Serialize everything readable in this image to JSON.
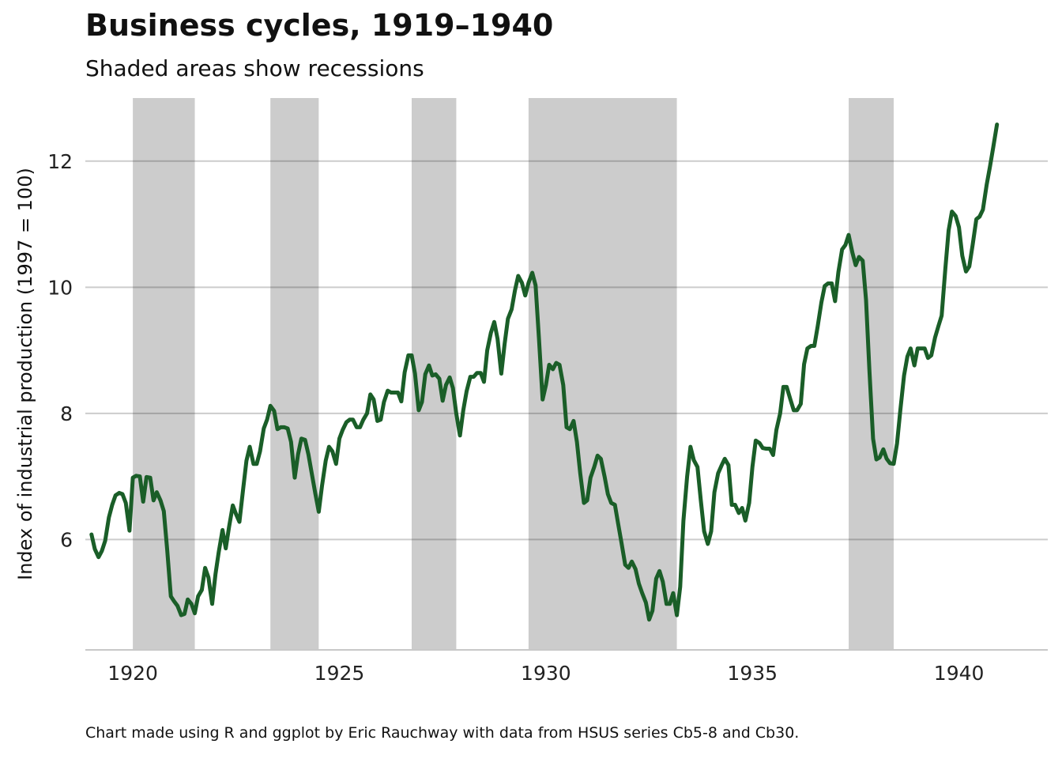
{
  "chart_data": {
    "type": "line",
    "title": "Business cycles, 1919–1940",
    "subtitle": "Shaded areas show recessions",
    "caption": "Chart made using R and ggplot by Eric Rauchway with data from HSUS series Cb5-8 and Cb30.",
    "xlabel": "",
    "ylabel": "Index of industrial production (1997 = 100)",
    "xlim": [
      1918.85,
      1942.15
    ],
    "ylim": [
      4.25,
      13.0
    ],
    "x_ticks": [
      1920,
      1925,
      1930,
      1935,
      1940
    ],
    "y_ticks": [
      6,
      8,
      10,
      12
    ],
    "grid": "horizontal",
    "legend": "none",
    "colors": {
      "line": "#1a5e28",
      "recession": "#cccccc",
      "grid": "#c8c8c8"
    },
    "recessions": [
      {
        "start": 1920.0,
        "end": 1921.5
      },
      {
        "start": 1923.33,
        "end": 1924.5
      },
      {
        "start": 1926.75,
        "end": 1927.83
      },
      {
        "start": 1929.58,
        "end": 1933.17
      },
      {
        "start": 1937.33,
        "end": 1938.42
      }
    ],
    "series": [
      {
        "x": [
          1919.0,
          1919.08,
          1919.17,
          1919.25,
          1919.33,
          1919.42,
          1919.5,
          1919.58,
          1919.67,
          1919.75,
          1919.83,
          1919.92,
          1920.0,
          1920.08,
          1920.17,
          1920.25,
          1920.33,
          1920.42,
          1920.5,
          1920.58,
          1920.67,
          1920.75,
          1920.83,
          1920.92,
          1921.0,
          1921.08,
          1921.17,
          1921.25,
          1921.33,
          1921.42,
          1921.5,
          1921.58,
          1921.67,
          1921.75,
          1921.83,
          1921.92,
          1922.0,
          1922.08,
          1922.17,
          1922.25,
          1922.33,
          1922.42,
          1922.5,
          1922.58,
          1922.67,
          1922.75,
          1922.83,
          1922.92,
          1923.0,
          1923.08,
          1923.17,
          1923.25,
          1923.33,
          1923.42,
          1923.5,
          1923.58,
          1923.67,
          1923.75,
          1923.83,
          1923.92,
          1924.0,
          1924.08,
          1924.17,
          1924.25,
          1924.33,
          1924.42,
          1924.5,
          1924.58,
          1924.67,
          1924.75,
          1924.83,
          1924.92,
          1925.0,
          1925.08,
          1925.17,
          1925.25,
          1925.33,
          1925.42,
          1925.5,
          1925.58,
          1925.67,
          1925.75,
          1925.83,
          1925.92,
          1926.0,
          1926.08,
          1926.17,
          1926.25,
          1926.33,
          1926.42,
          1926.5,
          1926.58,
          1926.67,
          1926.75,
          1926.83,
          1926.92,
          1927.0,
          1927.08,
          1927.17,
          1927.25,
          1927.33,
          1927.42,
          1927.5,
          1927.58,
          1927.67,
          1927.75,
          1927.83,
          1927.92,
          1928.0,
          1928.08,
          1928.17,
          1928.25,
          1928.33,
          1928.42,
          1928.5,
          1928.58,
          1928.67,
          1928.75,
          1928.83,
          1928.92,
          1929.0,
          1929.08,
          1929.17,
          1929.25,
          1929.33,
          1929.42,
          1929.5,
          1929.58,
          1929.67,
          1929.75,
          1929.83,
          1929.92,
          1930.0,
          1930.08,
          1930.17,
          1930.25,
          1930.33,
          1930.42,
          1930.5,
          1930.58,
          1930.67,
          1930.75,
          1930.83,
          1930.92,
          1931.0,
          1931.08,
          1931.17,
          1931.25,
          1931.33,
          1931.42,
          1931.5,
          1931.58,
          1931.67,
          1931.75,
          1931.83,
          1931.92,
          1932.0,
          1932.08,
          1932.17,
          1932.25,
          1932.33,
          1932.42,
          1932.5,
          1932.58,
          1932.67,
          1932.75,
          1932.83,
          1932.92,
          1933.0,
          1933.08,
          1933.17,
          1933.25,
          1933.33,
          1933.42,
          1933.5,
          1933.58,
          1933.67,
          1933.75,
          1933.83,
          1933.92,
          1934.0,
          1934.08,
          1934.17,
          1934.25,
          1934.33,
          1934.42,
          1934.5,
          1934.58,
          1934.67,
          1934.75,
          1934.83,
          1934.92,
          1935.0,
          1935.08,
          1935.17,
          1935.25,
          1935.33,
          1935.42,
          1935.5,
          1935.58,
          1935.67,
          1935.75,
          1935.83,
          1935.92,
          1936.0,
          1936.08,
          1936.17,
          1936.25,
          1936.33,
          1936.42,
          1936.5,
          1936.58,
          1936.67,
          1936.75,
          1936.83,
          1936.92,
          1937.0,
          1937.08,
          1937.17,
          1937.25,
          1937.33,
          1937.42,
          1937.5,
          1937.58,
          1937.67,
          1937.75,
          1937.83,
          1937.92,
          1938.0,
          1938.08,
          1938.17,
          1938.25,
          1938.33,
          1938.42,
          1938.5,
          1938.58,
          1938.67,
          1938.75,
          1938.83,
          1938.92,
          1939.0,
          1939.08,
          1939.17,
          1939.25,
          1939.33,
          1939.42,
          1939.5,
          1939.58,
          1939.67,
          1939.75,
          1939.83,
          1939.92,
          1940.0,
          1940.08,
          1940.17,
          1940.25,
          1940.33,
          1940.42,
          1940.5,
          1940.58,
          1940.67,
          1940.75,
          1940.83,
          1940.92
        ],
        "y": [
          6.08,
          5.85,
          5.72,
          5.82,
          5.98,
          6.35,
          6.55,
          6.7,
          6.74,
          6.72,
          6.58,
          6.14,
          6.98,
          7.01,
          7.0,
          6.6,
          6.99,
          6.98,
          6.62,
          6.75,
          6.62,
          6.45,
          5.85,
          5.1,
          5.02,
          4.95,
          4.8,
          4.82,
          5.05,
          4.98,
          4.83,
          5.1,
          5.2,
          5.55,
          5.4,
          4.98,
          5.45,
          5.8,
          6.15,
          5.86,
          6.2,
          6.54,
          6.4,
          6.28,
          6.8,
          7.25,
          7.47,
          7.2,
          7.2,
          7.4,
          7.76,
          7.9,
          8.12,
          8.04,
          7.75,
          7.78,
          7.78,
          7.76,
          7.55,
          6.98,
          7.35,
          7.6,
          7.58,
          7.35,
          7.05,
          6.72,
          6.44,
          6.85,
          7.25,
          7.47,
          7.4,
          7.2,
          7.6,
          7.74,
          7.86,
          7.9,
          7.9,
          7.78,
          7.78,
          7.9,
          8.0,
          8.3,
          8.22,
          7.88,
          7.9,
          8.18,
          8.36,
          8.33,
          8.33,
          8.33,
          8.19,
          8.65,
          8.92,
          8.92,
          8.63,
          8.05,
          8.18,
          8.62,
          8.76,
          8.6,
          8.62,
          8.55,
          8.2,
          8.45,
          8.57,
          8.4,
          8.0,
          7.65,
          8.05,
          8.35,
          8.58,
          8.58,
          8.64,
          8.64,
          8.5,
          9.0,
          9.28,
          9.45,
          9.18,
          8.63,
          9.1,
          9.5,
          9.65,
          9.95,
          10.18,
          10.07,
          9.87,
          10.07,
          10.23,
          10.03,
          9.2,
          8.22,
          8.45,
          8.77,
          8.7,
          8.8,
          8.77,
          8.45,
          7.78,
          7.75,
          7.88,
          7.55,
          7.05,
          6.58,
          6.62,
          6.98,
          7.15,
          7.33,
          7.28,
          7.0,
          6.72,
          6.58,
          6.55,
          6.25,
          5.95,
          5.6,
          5.55,
          5.65,
          5.53,
          5.3,
          5.15,
          5.0,
          4.73,
          4.87,
          5.38,
          5.5,
          5.33,
          4.98,
          4.98,
          5.15,
          4.8,
          5.25,
          6.3,
          7.0,
          7.47,
          7.26,
          7.15,
          6.62,
          6.13,
          5.93,
          6.13,
          6.75,
          7.05,
          7.17,
          7.28,
          7.18,
          6.55,
          6.55,
          6.42,
          6.5,
          6.3,
          6.58,
          7.15,
          7.57,
          7.53,
          7.45,
          7.44,
          7.44,
          7.34,
          7.74,
          8.0,
          8.42,
          8.42,
          8.22,
          8.05,
          8.05,
          8.15,
          8.78,
          9.03,
          9.07,
          9.07,
          9.38,
          9.76,
          10.02,
          10.06,
          10.06,
          9.78,
          10.24,
          10.6,
          10.67,
          10.83,
          10.55,
          10.35,
          10.48,
          10.42,
          9.8,
          8.7,
          7.6,
          7.27,
          7.3,
          7.43,
          7.28,
          7.21,
          7.2,
          7.52,
          8.05,
          8.6,
          8.9,
          9.03,
          8.76,
          9.03,
          9.03,
          9.03,
          8.88,
          8.92,
          9.2,
          9.38,
          9.55,
          10.3,
          10.9,
          11.2,
          11.13,
          10.95,
          10.5,
          10.25,
          10.33,
          10.67,
          11.08,
          11.12,
          11.23,
          11.62,
          11.91,
          12.22,
          12.58
        ]
      }
    ]
  }
}
